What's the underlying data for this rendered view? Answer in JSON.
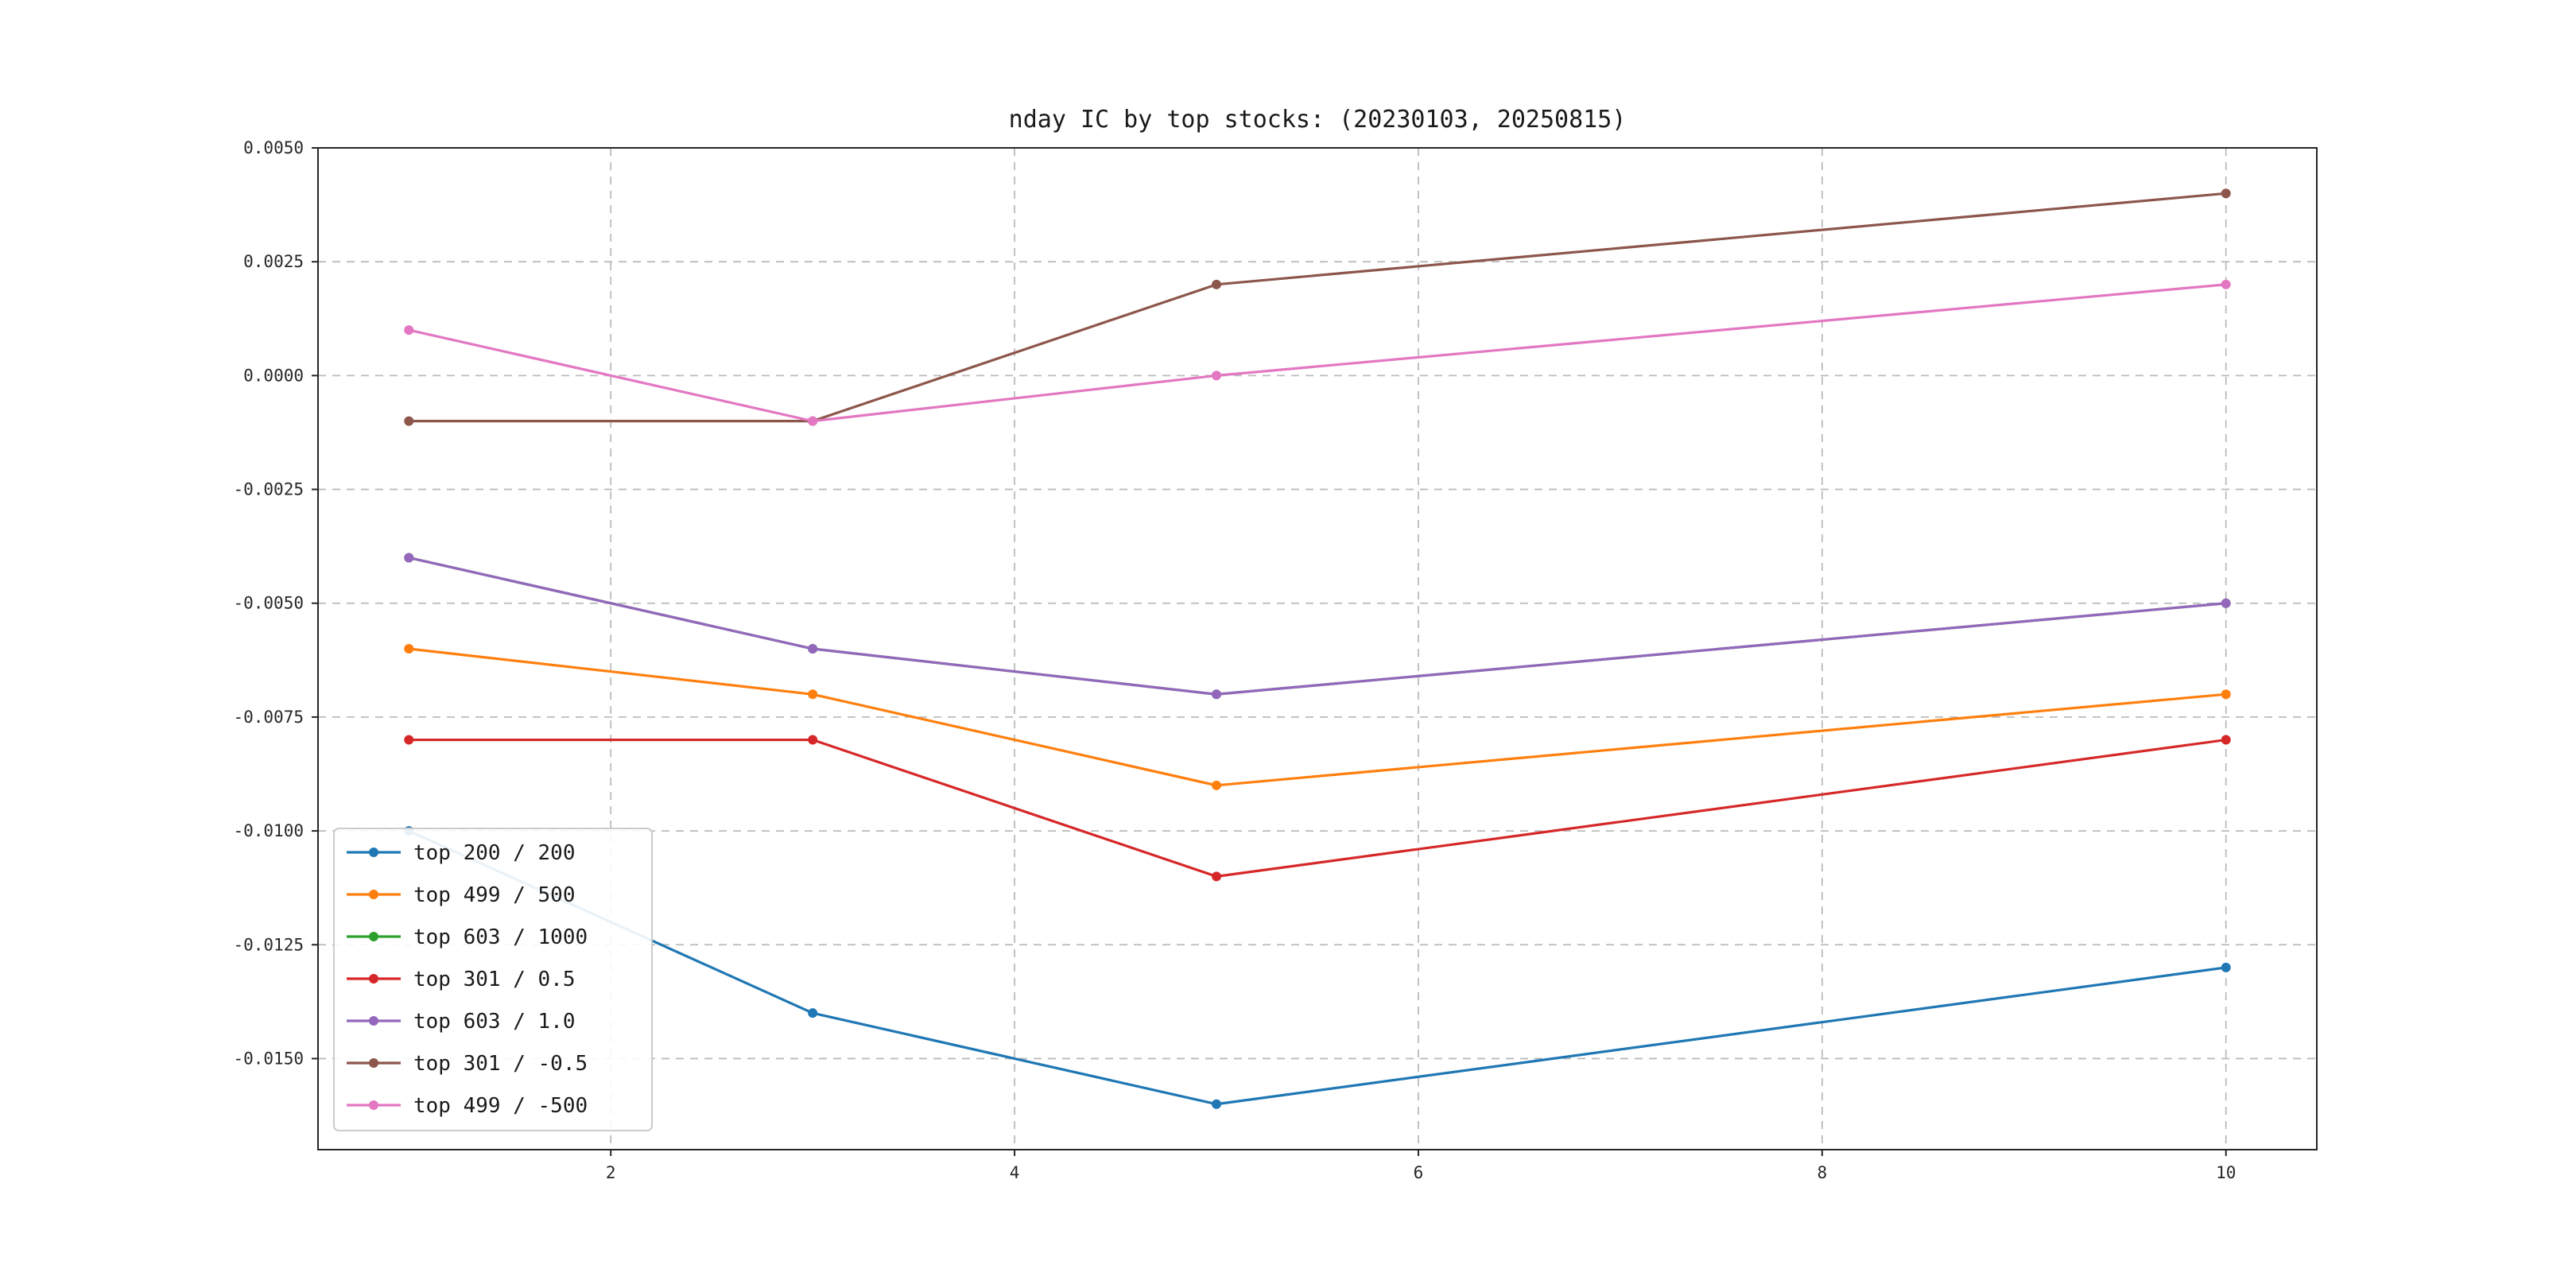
{
  "title": "nday IC by top stocks: (20230103, 20250815)",
  "chart_data": {
    "type": "line",
    "title": "nday IC by top stocks: (20230103, 20250815)",
    "x": [
      1,
      3,
      5,
      10
    ],
    "series": [
      {
        "name": "top 200 / 200",
        "color": "#1f77b4",
        "values": [
          -0.01,
          -0.014,
          -0.016,
          -0.013
        ]
      },
      {
        "name": "top 499 / 500",
        "color": "#ff7f0e",
        "values": [
          -0.006,
          -0.007,
          -0.009,
          -0.007
        ]
      },
      {
        "name": "top 603 / 1000",
        "color": "#2ca02c",
        "values": [
          -0.004,
          -0.006,
          -0.007,
          -0.005
        ]
      },
      {
        "name": "top 301 / 0.5",
        "color": "#d62728",
        "values": [
          -0.008,
          -0.008,
          -0.011,
          -0.008
        ]
      },
      {
        "name": "top 603 / 1.0",
        "color": "#9467bd",
        "values": [
          -0.004,
          -0.006,
          -0.007,
          -0.005
        ]
      },
      {
        "name": "top 301 / -0.5",
        "color": "#8c564b",
        "values": [
          -0.001,
          -0.001,
          0.002,
          0.004
        ]
      },
      {
        "name": "top 499 / -500",
        "color": "#e377c2",
        "values": [
          0.001,
          -0.001,
          0.0,
          0.002
        ]
      }
    ],
    "xticks": [
      2,
      4,
      6,
      8,
      10
    ],
    "yticks": [
      0.005,
      0.0025,
      0.0,
      -0.0025,
      -0.005,
      -0.0075,
      -0.01,
      -0.0125,
      -0.015
    ],
    "xlim": [
      0.55,
      10.45
    ],
    "ylim": [
      -0.017,
      0.005
    ],
    "grid": true,
    "marker": "o",
    "legend_position": "lower left"
  }
}
